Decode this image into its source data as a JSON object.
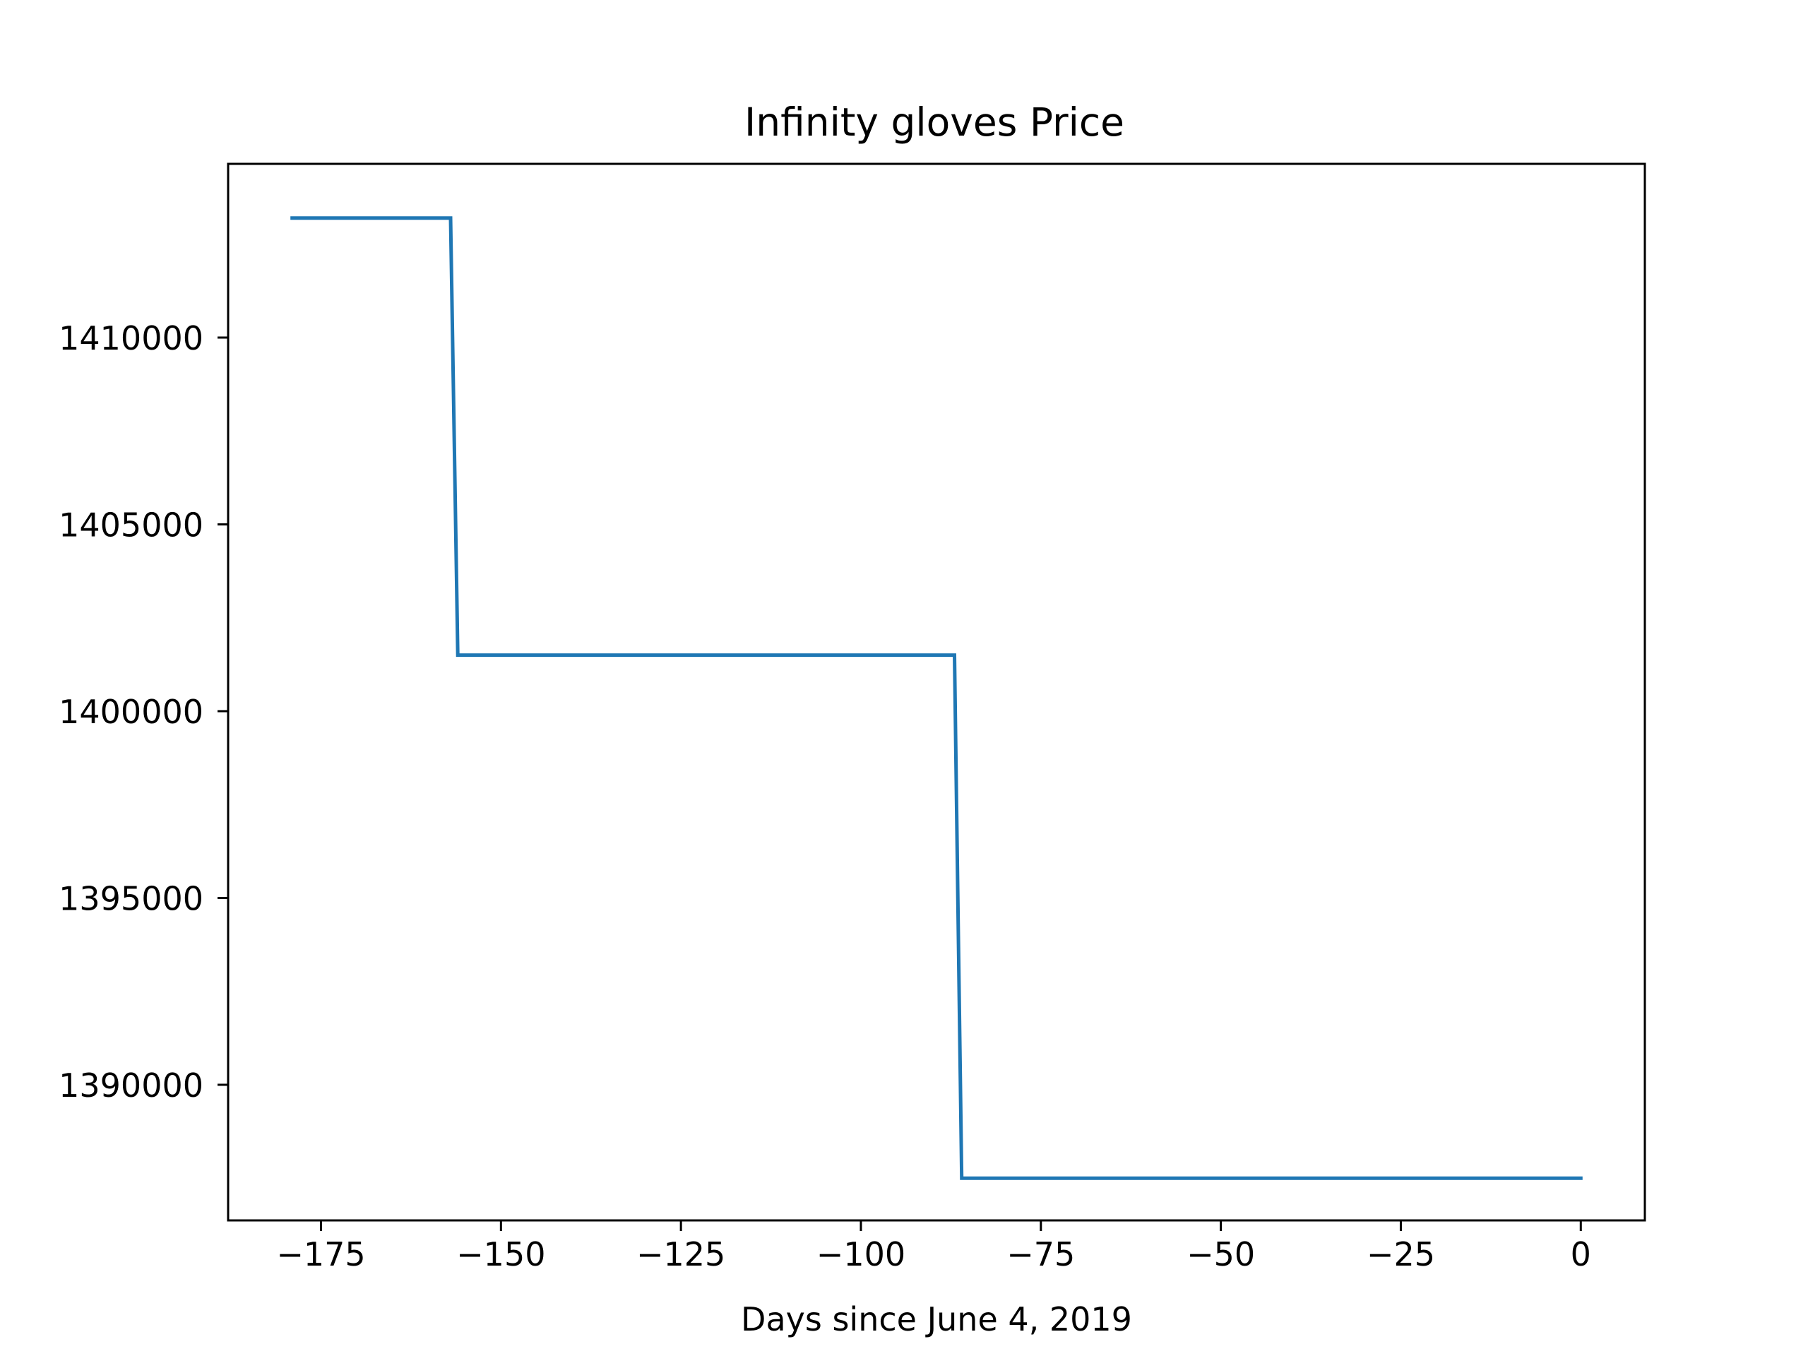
{
  "chart_data": {
    "type": "line",
    "title": "Infinity gloves Price",
    "xlabel": "Days since June 4, 2019",
    "ylabel": "",
    "xlim": [
      -187.9,
      8.9
    ],
    "ylim": [
      1386370,
      1414650
    ],
    "xticks": [
      -175,
      -150,
      -125,
      -100,
      -75,
      -50,
      -25,
      0
    ],
    "xtick_labels": [
      "−175",
      "−150",
      "−125",
      "−100",
      "−75",
      "−50",
      "−25",
      "0"
    ],
    "yticks": [
      1390000,
      1395000,
      1400000,
      1405000,
      1410000
    ],
    "ytick_labels": [
      "1390000",
      "1395000",
      "1400000",
      "1405000",
      "1410000"
    ],
    "grid": false,
    "legend": "none",
    "series": [
      {
        "color": "#1f77b4",
        "x": [
          -179,
          -157,
          -156,
          -87,
          -86,
          0
        ],
        "y": [
          1413200,
          1413200,
          1401500,
          1401500,
          1387500,
          1387500
        ]
      }
    ]
  }
}
